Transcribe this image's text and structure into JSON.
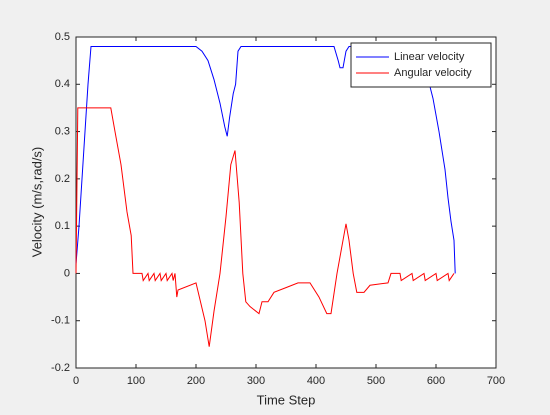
{
  "chart_data": {
    "type": "line",
    "xlabel": "Time Step",
    "ylabel": "Velocity (m/s,rad/s)",
    "xlim": [
      0,
      700
    ],
    "ylim": [
      -0.2,
      0.5
    ],
    "xticks": [
      0,
      100,
      200,
      300,
      400,
      500,
      600,
      700
    ],
    "yticks": [
      -0.2,
      -0.1,
      0,
      0.1,
      0.2,
      0.3,
      0.4,
      0.5
    ],
    "grid": false,
    "legend": "northeast",
    "series": [
      {
        "name": "Linear velocity",
        "color": "#0000ff",
        "x": [
          0,
          5,
          10,
          15,
          20,
          25,
          200,
          210,
          220,
          230,
          240,
          248,
          252,
          256,
          262,
          266,
          270,
          275,
          430,
          437,
          440,
          445,
          450,
          455,
          565,
          575,
          585,
          595,
          605,
          615,
          620,
          625,
          630,
          632
        ],
        "values": [
          0.02,
          0.1,
          0.2,
          0.3,
          0.4,
          0.48,
          0.48,
          0.47,
          0.45,
          0.41,
          0.36,
          0.31,
          0.29,
          0.33,
          0.38,
          0.4,
          0.47,
          0.48,
          0.48,
          0.45,
          0.435,
          0.435,
          0.47,
          0.48,
          0.48,
          0.46,
          0.42,
          0.37,
          0.3,
          0.22,
          0.16,
          0.11,
          0.07,
          0
        ]
      },
      {
        "name": "Angular velocity",
        "color": "#ff0000",
        "x": [
          0,
          3,
          58,
          65,
          75,
          85,
          92,
          95,
          110,
          112,
          120,
          122,
          130,
          132,
          140,
          142,
          150,
          152,
          160,
          162,
          165,
          168,
          170,
          200,
          215,
          222,
          230,
          240,
          250,
          258,
          265,
          272,
          278,
          283,
          290,
          305,
          310,
          320,
          330,
          350,
          370,
          390,
          405,
          418,
          425,
          435,
          445,
          450,
          455,
          462,
          468,
          480,
          490,
          520,
          525,
          540,
          542,
          560,
          562,
          580,
          582,
          600,
          602,
          620,
          622,
          630
        ],
        "values": [
          0,
          0.35,
          0.35,
          0.3,
          0.23,
          0.13,
          0.08,
          0,
          0,
          -0.015,
          0,
          -0.015,
          0,
          -0.015,
          0,
          -0.015,
          0,
          -0.015,
          0,
          -0.015,
          0,
          -0.05,
          -0.035,
          -0.02,
          -0.1,
          -0.155,
          -0.08,
          0,
          0.12,
          0.23,
          0.26,
          0.15,
          0,
          -0.06,
          -0.07,
          -0.085,
          -0.06,
          -0.06,
          -0.04,
          -0.03,
          -0.02,
          -0.02,
          -0.05,
          -0.085,
          -0.085,
          0,
          0.07,
          0.105,
          0.07,
          0,
          -0.04,
          -0.04,
          -0.025,
          -0.02,
          0,
          0,
          -0.015,
          0,
          -0.015,
          0,
          -0.015,
          0,
          -0.015,
          0,
          -0.015,
          0
        ]
      }
    ]
  }
}
